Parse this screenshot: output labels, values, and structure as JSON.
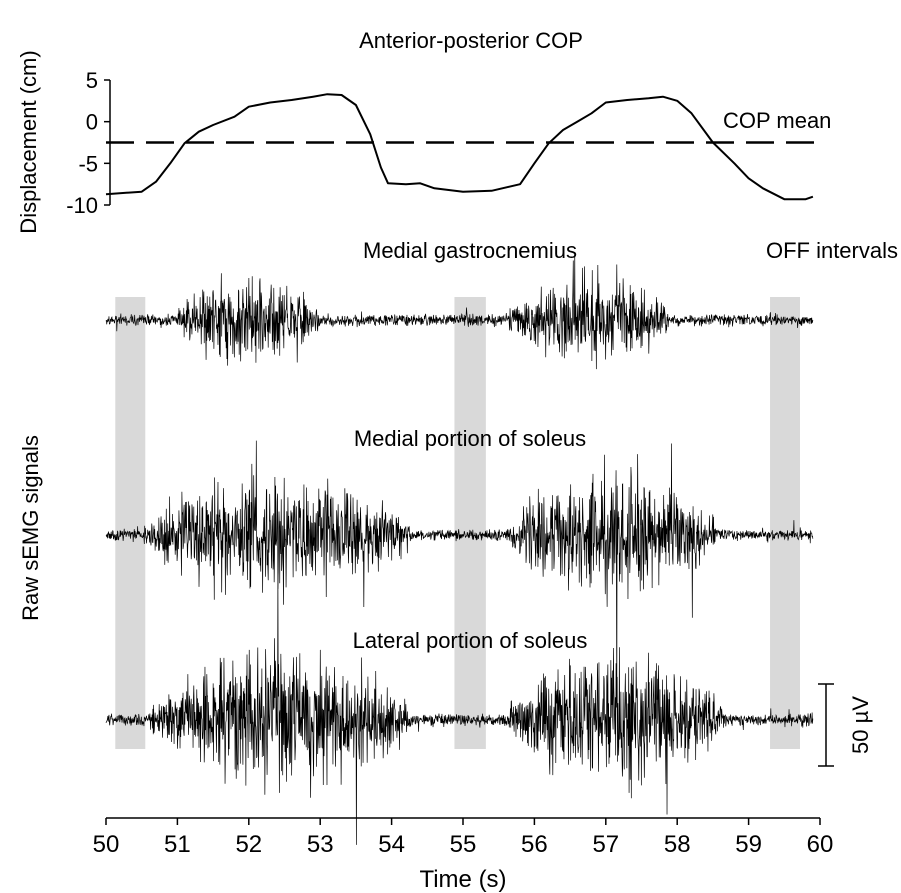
{
  "chart_data": {
    "type": "line",
    "x_axis": {
      "label": "Time (s)",
      "range": [
        50,
        60
      ],
      "ticks": [
        50,
        51,
        52,
        53,
        54,
        55,
        56,
        57,
        58,
        59,
        60
      ],
      "tick_labels": [
        "50",
        "51",
        "52",
        "53",
        "54",
        "55",
        "56",
        "57",
        "58",
        "59",
        "60"
      ]
    },
    "cop": {
      "title": "Anterior-posterior COP",
      "ylabel": "Displacement (cm)",
      "ylim": [
        -10,
        5
      ],
      "yticks": [
        5,
        0,
        -5,
        -10
      ],
      "ytick_labels": [
        "5",
        "0",
        "-5",
        "-10"
      ],
      "mean_label": "COP mean",
      "mean_value": -2.5,
      "series": {
        "x": [
          50.0,
          50.5,
          50.7,
          50.9,
          51.1,
          51.3,
          51.5,
          51.8,
          52.0,
          52.3,
          52.6,
          52.9,
          53.1,
          53.3,
          53.5,
          53.7,
          53.85,
          53.95,
          54.2,
          54.4,
          54.6,
          55.0,
          55.4,
          55.8,
          56.0,
          56.2,
          56.4,
          56.6,
          56.8,
          57.0,
          57.3,
          57.6,
          57.8,
          58.0,
          58.2,
          58.5,
          58.8,
          59.0,
          59.2,
          59.5,
          59.8,
          59.9
        ],
        "y": [
          -8.7,
          -8.4,
          -7.2,
          -5.0,
          -2.6,
          -1.2,
          -0.4,
          0.6,
          1.8,
          2.3,
          2.6,
          3.0,
          3.3,
          3.2,
          2.0,
          -1.5,
          -5.5,
          -7.4,
          -7.5,
          -7.4,
          -8.0,
          -8.4,
          -8.3,
          -7.5,
          -5.0,
          -2.6,
          -1.0,
          0.0,
          1.0,
          2.3,
          2.6,
          2.8,
          3.0,
          2.5,
          1.0,
          -2.5,
          -5.0,
          -6.8,
          -8.0,
          -9.3,
          -9.3,
          -9.0
        ]
      }
    },
    "emg": {
      "ylabel": "Raw sEMG signals",
      "scale_bar_label": "50 µV",
      "scale_bar_uV": 50,
      "channels": [
        {
          "name": "Medial gastrocnemius",
          "burst_intervals": [
            [
              51.0,
              53.0
            ],
            [
              55.6,
              57.9
            ]
          ],
          "burst_amplitude_uV": 22,
          "baseline_amplitude_uV": 3
        },
        {
          "name": "Medial portion of soleus",
          "burst_intervals": [
            [
              50.5,
              54.3
            ],
            [
              55.6,
              58.6
            ]
          ],
          "burst_amplitude_uV": 30,
          "baseline_amplitude_uV": 3
        },
        {
          "name": "Lateral portion of soleus",
          "burst_intervals": [
            [
              50.6,
              54.3
            ],
            [
              55.6,
              58.7
            ]
          ],
          "burst_amplitude_uV": 34,
          "baseline_amplitude_uV": 3
        }
      ]
    },
    "off_intervals": {
      "label": "OFF intervals",
      "intervals": [
        [
          50.13,
          50.55
        ],
        [
          54.88,
          55.32
        ],
        [
          59.3,
          59.72
        ]
      ]
    }
  }
}
